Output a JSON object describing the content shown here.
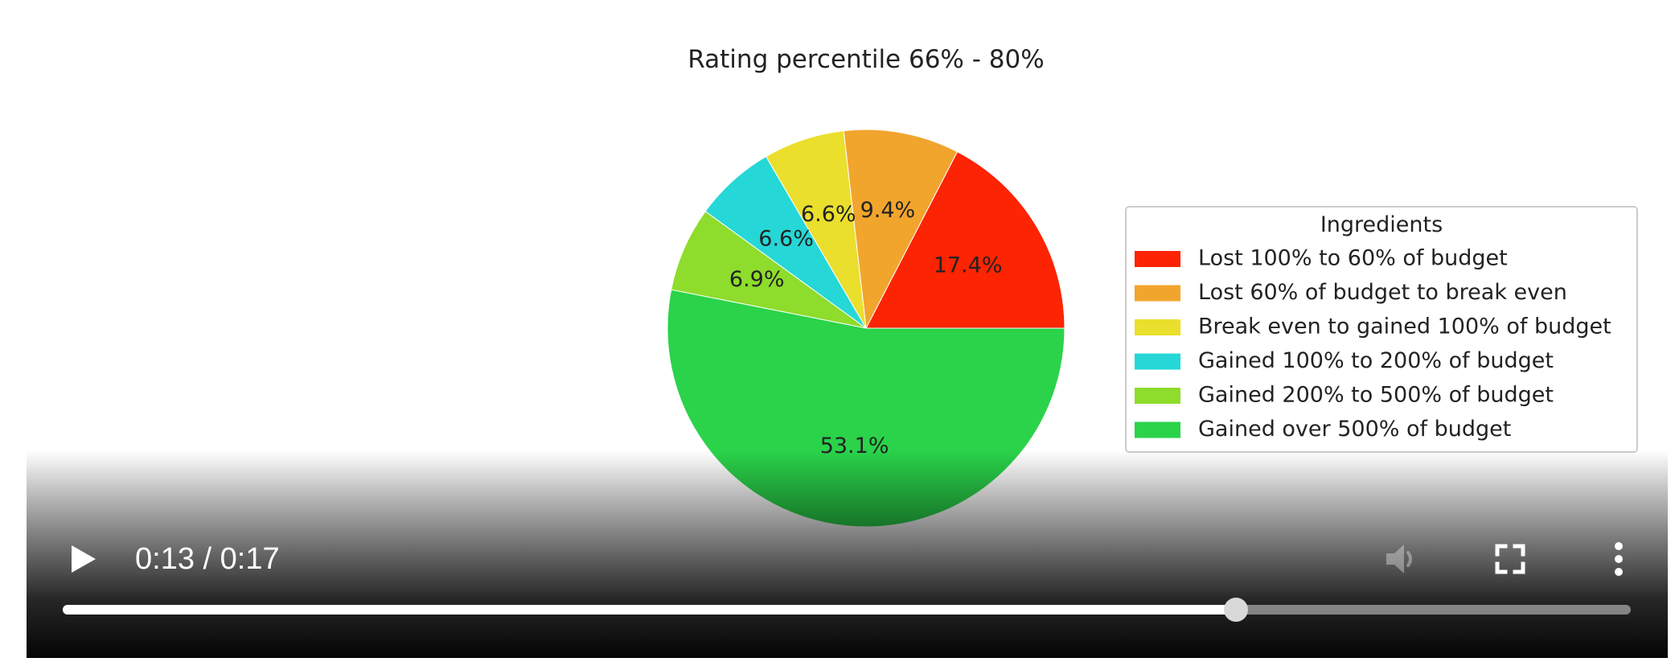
{
  "chart_data": {
    "type": "pie",
    "title": "Rating percentile 66% - 80%",
    "legend_title": "Ingredients",
    "legend_position": "right",
    "start_angle": 0,
    "direction": "counterclockwise",
    "slices": [
      {
        "label": "Lost 100% to 60% of budget",
        "value": 17.4,
        "display": "17.4%",
        "color": "#fc2402"
      },
      {
        "label": "Lost 60% of budget to break even",
        "value": 9.4,
        "display": "9.4%",
        "color": "#f2a52c"
      },
      {
        "label": "Break even to gained 100% of budget",
        "value": 6.6,
        "display": "6.6%",
        "color": "#eadf2d"
      },
      {
        "label": "Gained 100% to 200% of budget",
        "value": 6.6,
        "display": "6.6%",
        "color": "#26d7d7"
      },
      {
        "label": "Gained 200% to 500% of budget",
        "value": 6.9,
        "display": "6.9%",
        "color": "#8edc2b"
      },
      {
        "label": "Gained over 500% of budget",
        "value": 53.1,
        "display": "53.1%",
        "color": "#2ad34a"
      }
    ]
  },
  "player": {
    "current_time": "0:13",
    "duration": "0:17",
    "time_text": "0:13 / 0:17",
    "progress": 0.748,
    "muted": true,
    "icons": {
      "play": "play-icon",
      "volume": "volume-icon",
      "fullscreen": "fullscreen-icon",
      "more": "more-vert-icon"
    }
  }
}
